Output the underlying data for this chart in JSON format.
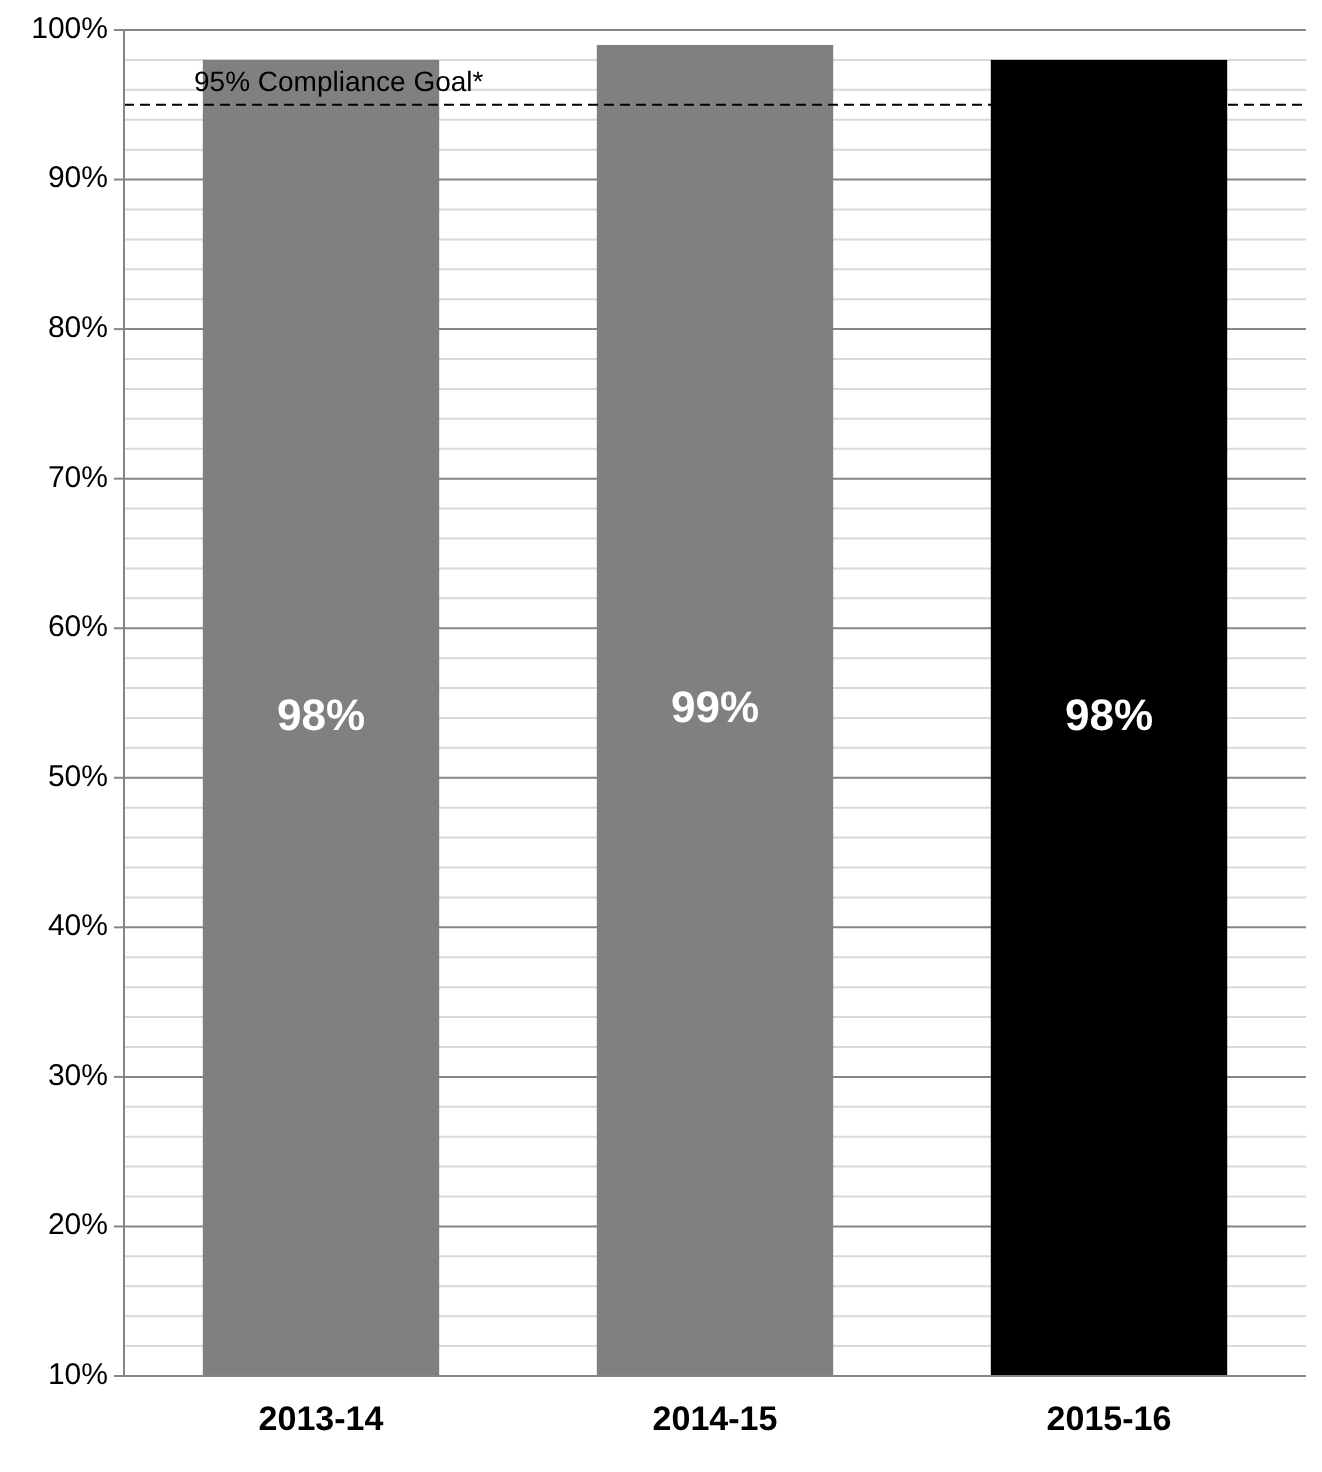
{
  "chart_data": {
    "type": "bar",
    "categories": [
      "2013-14",
      "2014-15",
      "2015-16"
    ],
    "values": [
      98,
      99,
      98
    ],
    "colors": [
      "#808080",
      "#808080",
      "#000000"
    ],
    "value_labels": [
      "98%",
      "99%",
      "98%"
    ],
    "ylim": [
      10,
      100
    ],
    "yticks": [
      {
        "value": 10,
        "label": "10%"
      },
      {
        "value": 12,
        "label": null
      },
      {
        "value": 14,
        "label": null
      },
      {
        "value": 16,
        "label": null
      },
      {
        "value": 18,
        "label": null
      },
      {
        "value": 20,
        "label": "20%"
      },
      {
        "value": 22,
        "label": null
      },
      {
        "value": 24,
        "label": null
      },
      {
        "value": 26,
        "label": null
      },
      {
        "value": 28,
        "label": null
      },
      {
        "value": 30,
        "label": "30%"
      },
      {
        "value": 32,
        "label": null
      },
      {
        "value": 34,
        "label": null
      },
      {
        "value": 36,
        "label": null
      },
      {
        "value": 38,
        "label": null
      },
      {
        "value": 40,
        "label": "40%"
      },
      {
        "value": 42,
        "label": null
      },
      {
        "value": 44,
        "label": null
      },
      {
        "value": 46,
        "label": null
      },
      {
        "value": 48,
        "label": null
      },
      {
        "value": 50,
        "label": "50%"
      },
      {
        "value": 52,
        "label": null
      },
      {
        "value": 54,
        "label": null
      },
      {
        "value": 56,
        "label": null
      },
      {
        "value": 58,
        "label": null
      },
      {
        "value": 60,
        "label": "60%"
      },
      {
        "value": 62,
        "label": null
      },
      {
        "value": 64,
        "label": null
      },
      {
        "value": 66,
        "label": null
      },
      {
        "value": 68,
        "label": null
      },
      {
        "value": 70,
        "label": "70%"
      },
      {
        "value": 72,
        "label": null
      },
      {
        "value": 74,
        "label": null
      },
      {
        "value": 76,
        "label": null
      },
      {
        "value": 78,
        "label": null
      },
      {
        "value": 80,
        "label": "80%"
      },
      {
        "value": 82,
        "label": null
      },
      {
        "value": 84,
        "label": null
      },
      {
        "value": 86,
        "label": null
      },
      {
        "value": 88,
        "label": null
      },
      {
        "value": 90,
        "label": "90%"
      },
      {
        "value": 92,
        "label": null
      },
      {
        "value": 94,
        "label": null
      },
      {
        "value": 96,
        "label": null
      },
      {
        "value": 98,
        "label": null
      },
      {
        "value": 100,
        "label": "100%"
      }
    ],
    "grid": "y",
    "ref_lines": [
      {
        "axis": "y",
        "value": 95,
        "label": "95% Compliance Goal*",
        "color": "#000000",
        "line_style": "dashed"
      }
    ]
  }
}
